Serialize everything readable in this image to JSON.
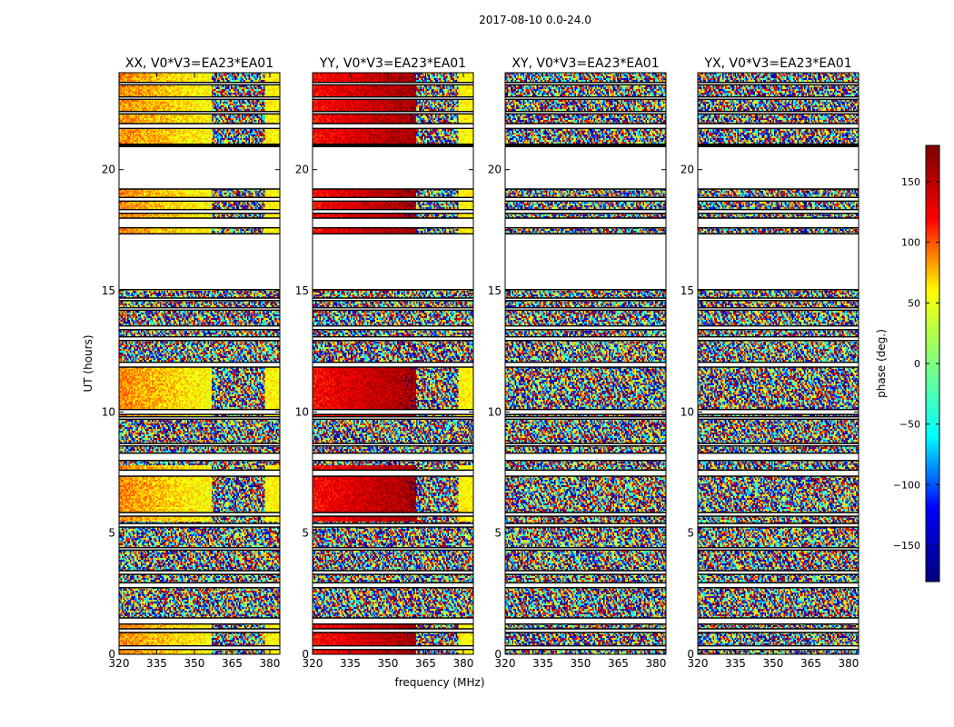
{
  "figure": {
    "suptitle": "2017-08-10 0.0-24.0",
    "ylabel": "UT (hours)",
    "xlabel": "frequency (MHz)"
  },
  "colorbar": {
    "label": "phase (deg.)",
    "range": [
      -180,
      180
    ],
    "ticks": [
      150,
      100,
      50,
      0,
      -50,
      -100,
      -150
    ],
    "tick_labels": [
      "150",
      "100",
      "50",
      "0",
      "−50",
      "−100",
      "−150"
    ],
    "colormap": [
      "#00007f",
      "#0000ff",
      "#00ffff",
      "#7fff7f",
      "#ffff00",
      "#ff0000",
      "#7f0000"
    ]
  },
  "chart_data": {
    "type": "heatmap",
    "xlim": [
      320,
      384
    ],
    "ylim": [
      0,
      24
    ],
    "x_ticks": [
      320,
      335,
      350,
      365,
      380
    ],
    "y_ticks": [
      0,
      5,
      10,
      15,
      20
    ],
    "panels": [
      {
        "title": "XX, V0*V3=EA23*EA01",
        "x_tick_labels": [
          "320",
          "335",
          "350",
          "365",
          "380"
        ],
        "y_tick_labels": [
          "0",
          "5",
          "10",
          "15",
          "20"
        ],
        "base_phase_low_freq": 90,
        "base_phase_high_freq": 55,
        "coherent_below_mhz": 357
      },
      {
        "title": "YY, V0*V3=EA23*EA01",
        "x_tick_labels": [
          "320",
          "335",
          "350",
          "365",
          "380"
        ],
        "y_tick_labels": [
          "0",
          "5",
          "10",
          "15",
          "20"
        ],
        "base_phase_low_freq": 120,
        "base_phase_high_freq": 165,
        "coherent_below_mhz": 361
      },
      {
        "title": "XY, V0*V3=EA23*EA01",
        "x_tick_labels": [
          "320",
          "335",
          "350",
          "365",
          "380"
        ],
        "y_tick_labels": [
          "0",
          "5",
          "10",
          "15",
          "20"
        ],
        "base_phase_low_freq": null,
        "base_phase_high_freq": null,
        "coherent_below_mhz": null
      },
      {
        "title": "YX, V0*V3=EA23*EA01",
        "x_tick_labels": [
          "320",
          "335",
          "350",
          "365",
          "380"
        ],
        "y_tick_labels": [
          "0",
          "5",
          "10",
          "15",
          "20"
        ],
        "base_phase_low_freq": null,
        "base_phase_high_freq": null,
        "coherent_below_mhz": null
      }
    ],
    "flagged_ut_hours": [
      [
        0.2,
        0.35
      ],
      [
        0.9,
        1.05
      ],
      [
        1.25,
        1.5
      ],
      [
        2.75,
        2.95
      ],
      [
        3.3,
        3.45
      ],
      [
        4.3,
        4.4
      ],
      [
        5.25,
        5.4
      ],
      [
        5.7,
        5.85
      ],
      [
        7.35,
        7.6
      ],
      [
        8.0,
        8.3
      ],
      [
        8.6,
        8.7
      ],
      [
        9.7,
        9.8
      ],
      [
        9.9,
        10.1
      ],
      [
        11.85,
        12.05
      ],
      [
        12.95,
        13.1
      ],
      [
        13.4,
        13.55
      ],
      [
        14.2,
        14.3
      ],
      [
        14.6,
        14.7
      ],
      [
        15.05,
        17.35
      ],
      [
        17.6,
        18.0
      ],
      [
        18.2,
        18.35
      ],
      [
        18.7,
        18.85
      ],
      [
        19.2,
        20.95
      ],
      [
        21.0,
        21.05
      ],
      [
        21.7,
        21.9
      ],
      [
        22.3,
        22.4
      ],
      [
        22.9,
        23.0
      ],
      [
        23.5,
        23.6
      ]
    ]
  }
}
